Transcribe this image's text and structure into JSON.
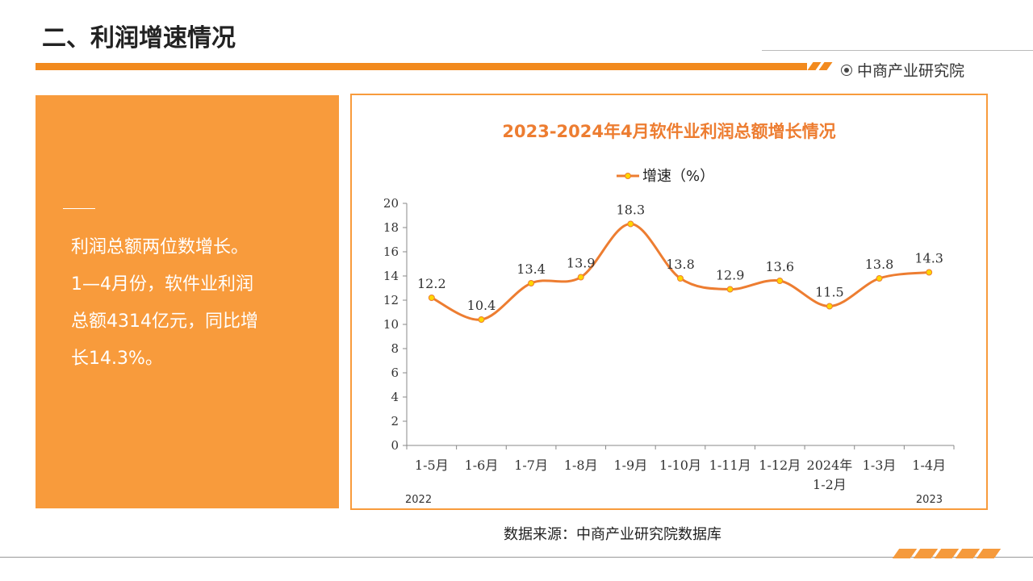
{
  "header": {
    "title": "二、利润增速情况",
    "brand": "中商产业研究院"
  },
  "left_panel": {
    "lines": [
      "利润总额两位数增长。",
      "1—4月份，软件业利润",
      "总额4314亿元，同比增",
      "长14.3%。"
    ]
  },
  "source": "数据来源：中商产业研究院数据库",
  "colors": {
    "accent": "#f28a1e",
    "panel": "#f89b3c",
    "line": "#ed7d31",
    "marker": "#ffd700"
  },
  "chart_data": {
    "type": "line",
    "title": "2023-2024年4月软件业利润总额增长情况",
    "categories": [
      "1-5月",
      "1-6月",
      "1-7月",
      "1-8月",
      "1-9月",
      "1-10月",
      "1-11月",
      "1-12月",
      "2024年\n1-2月",
      "1-3月",
      "1-4月"
    ],
    "series": [
      {
        "name": "增速（%）",
        "values": [
          12.2,
          10.4,
          13.4,
          13.9,
          18.3,
          13.8,
          12.9,
          13.6,
          11.5,
          13.8,
          14.3
        ]
      }
    ],
    "data_labels": [
      "12.2",
      "10.4",
      "13.4",
      "13.9",
      "18.3",
      "13.8",
      "12.9",
      "13.6",
      "11.5",
      "13.8",
      "14.3"
    ],
    "ylim": [
      0,
      20
    ],
    "yticks": [
      "0",
      "2",
      "4",
      "6",
      "8",
      "10",
      "12",
      "14",
      "16",
      "18",
      "20"
    ],
    "year_labels": [
      "2022",
      "2023"
    ],
    "smooth": true,
    "grid": false,
    "legend": "top"
  }
}
